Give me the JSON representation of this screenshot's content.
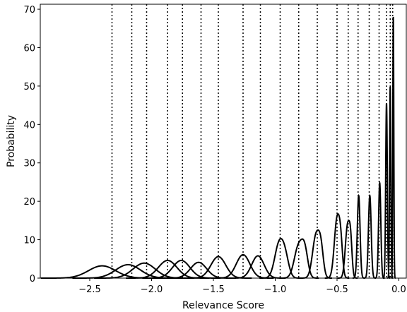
{
  "chart_data": {
    "type": "line",
    "title": "",
    "xlabel": "Relevance Score",
    "ylabel": "Probability",
    "xlim": [
      -2.9,
      0.06
    ],
    "ylim": [
      0,
      71.3
    ],
    "xticks": [
      -2.5,
      -2.0,
      -1.5,
      -1.0,
      -0.5,
      0.0
    ],
    "xtick_labels": [
      "−2.5",
      "−2.0",
      "−1.5",
      "−1.0",
      "−0.5",
      "0.0"
    ],
    "yticks": [
      0,
      10,
      20,
      30,
      40,
      50,
      60,
      70
    ],
    "ytick_labels": [
      "0",
      "10",
      "20",
      "30",
      "40",
      "50",
      "60",
      "70"
    ],
    "grid": false,
    "line_color": "#000000",
    "vertical_lines": [
      -2.32,
      -2.16,
      -2.04,
      -1.87,
      -1.75,
      -1.6,
      -1.46,
      -1.26,
      -1.12,
      -0.96,
      -0.81,
      -0.66,
      -0.5,
      -0.41,
      -0.33,
      -0.24,
      -0.16,
      -0.1,
      -0.07,
      -0.05
    ],
    "series": [
      {
        "peaks": [
          {
            "mu": -2.4,
            "sigma": 0.11,
            "h": 3.2
          }
        ]
      },
      {
        "peaks": [
          {
            "mu": -2.19,
            "sigma": 0.1,
            "h": 3.5
          }
        ]
      },
      {
        "peaks": [
          {
            "mu": -2.06,
            "sigma": 0.09,
            "h": 3.9
          }
        ]
      },
      {
        "peaks": [
          {
            "mu": -1.87,
            "sigma": 0.075,
            "h": 4.6
          }
        ]
      },
      {
        "peaks": [
          {
            "mu": -1.76,
            "sigma": 0.07,
            "h": 4.6
          }
        ]
      },
      {
        "peaks": [
          {
            "mu": -1.62,
            "sigma": 0.065,
            "h": 4.1
          }
        ]
      },
      {
        "peaks": [
          {
            "mu": -1.46,
            "sigma": 0.06,
            "h": 5.6
          }
        ]
      },
      {
        "peaks": [
          {
            "mu": -1.26,
            "sigma": 0.055,
            "h": 6.1
          }
        ]
      },
      {
        "peaks": [
          {
            "mu": -1.14,
            "sigma": 0.05,
            "h": 5.8
          }
        ]
      },
      {
        "peaks": [
          {
            "mu": -0.97,
            "sigma": 0.035,
            "h": 8.5
          },
          {
            "mu": -0.92,
            "sigma": 0.03,
            "h": 5.0
          }
        ]
      },
      {
        "peaks": [
          {
            "mu": -0.81,
            "sigma": 0.035,
            "h": 8.4
          },
          {
            "mu": -0.76,
            "sigma": 0.025,
            "h": 6.0
          }
        ]
      },
      {
        "peaks": [
          {
            "mu": -0.67,
            "sigma": 0.028,
            "h": 11.0
          },
          {
            "mu": -0.63,
            "sigma": 0.02,
            "h": 6.5
          }
        ]
      },
      {
        "peaks": [
          {
            "mu": -0.5,
            "sigma": 0.022,
            "h": 15.3
          },
          {
            "mu": -0.47,
            "sigma": 0.015,
            "h": 7.0
          }
        ]
      },
      {
        "peaks": [
          {
            "mu": -0.415,
            "sigma": 0.018,
            "h": 13.5
          },
          {
            "mu": -0.39,
            "sigma": 0.012,
            "h": 7.5
          }
        ]
      },
      {
        "peaks": [
          {
            "mu": -0.325,
            "sigma": 0.011,
            "h": 21.5
          }
        ]
      },
      {
        "peaks": [
          {
            "mu": -0.235,
            "sigma": 0.011,
            "h": 21.5
          }
        ]
      },
      {
        "peaks": [
          {
            "mu": -0.155,
            "sigma": 0.009,
            "h": 24.8
          }
        ]
      },
      {
        "peaks": [
          {
            "mu": -0.1,
            "sigma": 0.0065,
            "h": 45.5
          }
        ]
      },
      {
        "peaks": [
          {
            "mu": -0.07,
            "sigma": 0.005,
            "h": 49.8
          }
        ]
      },
      {
        "peaks": [
          {
            "mu": -0.045,
            "sigma": 0.004,
            "h": 68.0
          }
        ]
      }
    ]
  }
}
